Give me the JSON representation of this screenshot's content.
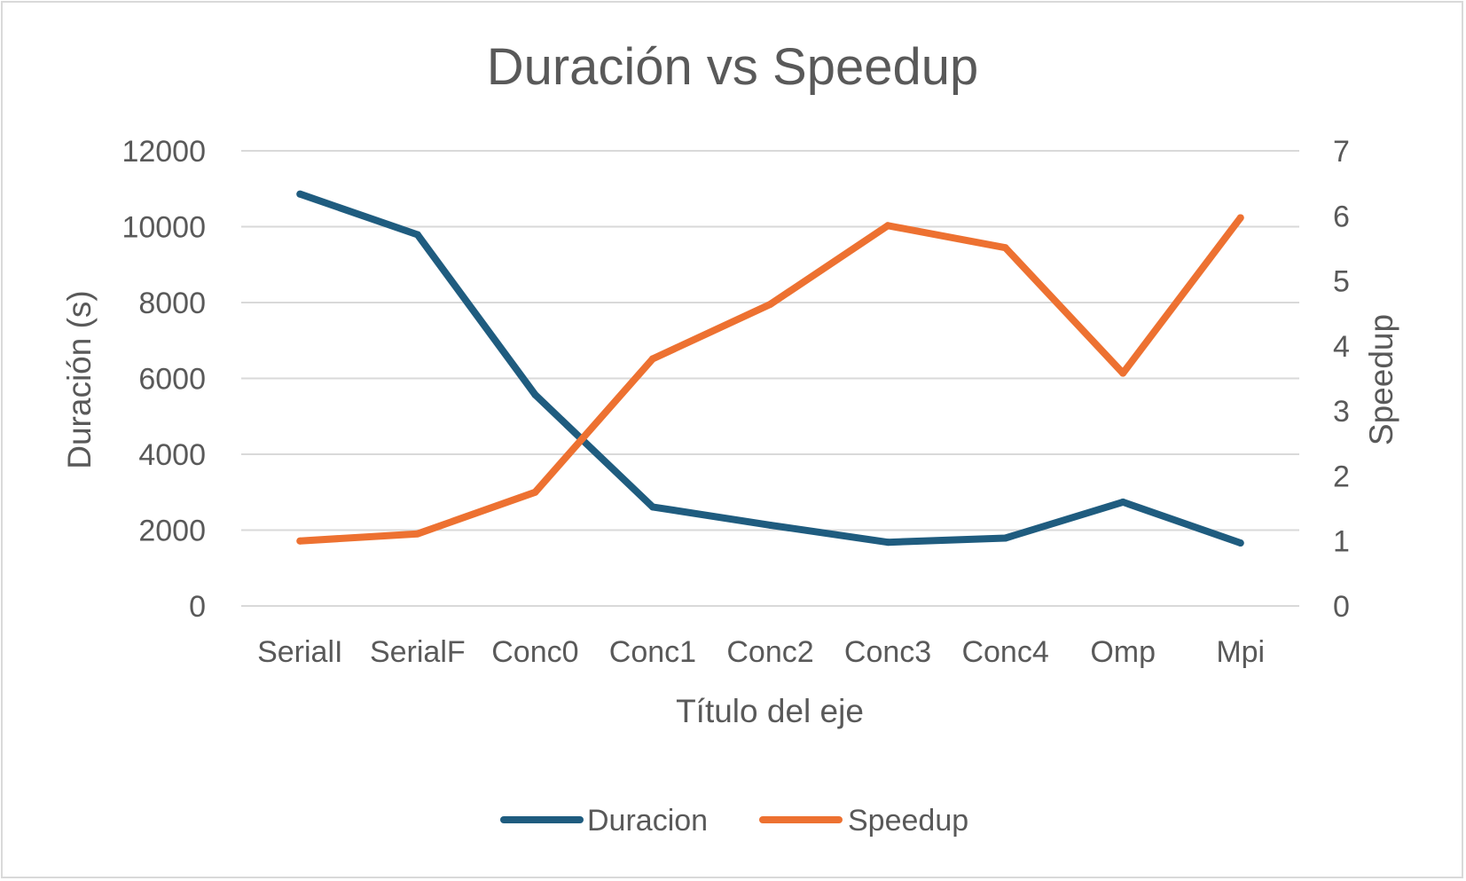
{
  "chart_data": {
    "type": "line",
    "title": "Duración vs Speedup",
    "xlabel": "Título del eje",
    "ylabel": "Duración (s)",
    "y2label": "Speedup",
    "categories": [
      "SerialI",
      "SerialF",
      "Conc0",
      "Conc1",
      "Conc2",
      "Conc3",
      "Conc4",
      "Omp",
      "Mpi"
    ],
    "ylim": [
      0,
      12000
    ],
    "y2lim": [
      0,
      7
    ],
    "yticks": [
      "0",
      "2000",
      "4000",
      "6000",
      "8000",
      "10000",
      "12000"
    ],
    "y2ticks": [
      "0",
      "1",
      "2",
      "3",
      "4",
      "5",
      "6",
      "7"
    ],
    "grid": true,
    "legend_position": "bottom",
    "series": [
      {
        "name": "Duracion",
        "axis": "left",
        "color": "#1f5c7f",
        "values": [
          10860,
          9790,
          5570,
          2610,
          2130,
          1680,
          1790,
          2740,
          1660
        ]
      },
      {
        "name": "Speedup",
        "axis": "right",
        "color": "#ed7131",
        "values": [
          1.0,
          1.11,
          1.75,
          3.8,
          4.64,
          5.85,
          5.51,
          3.58,
          5.97
        ]
      }
    ]
  }
}
